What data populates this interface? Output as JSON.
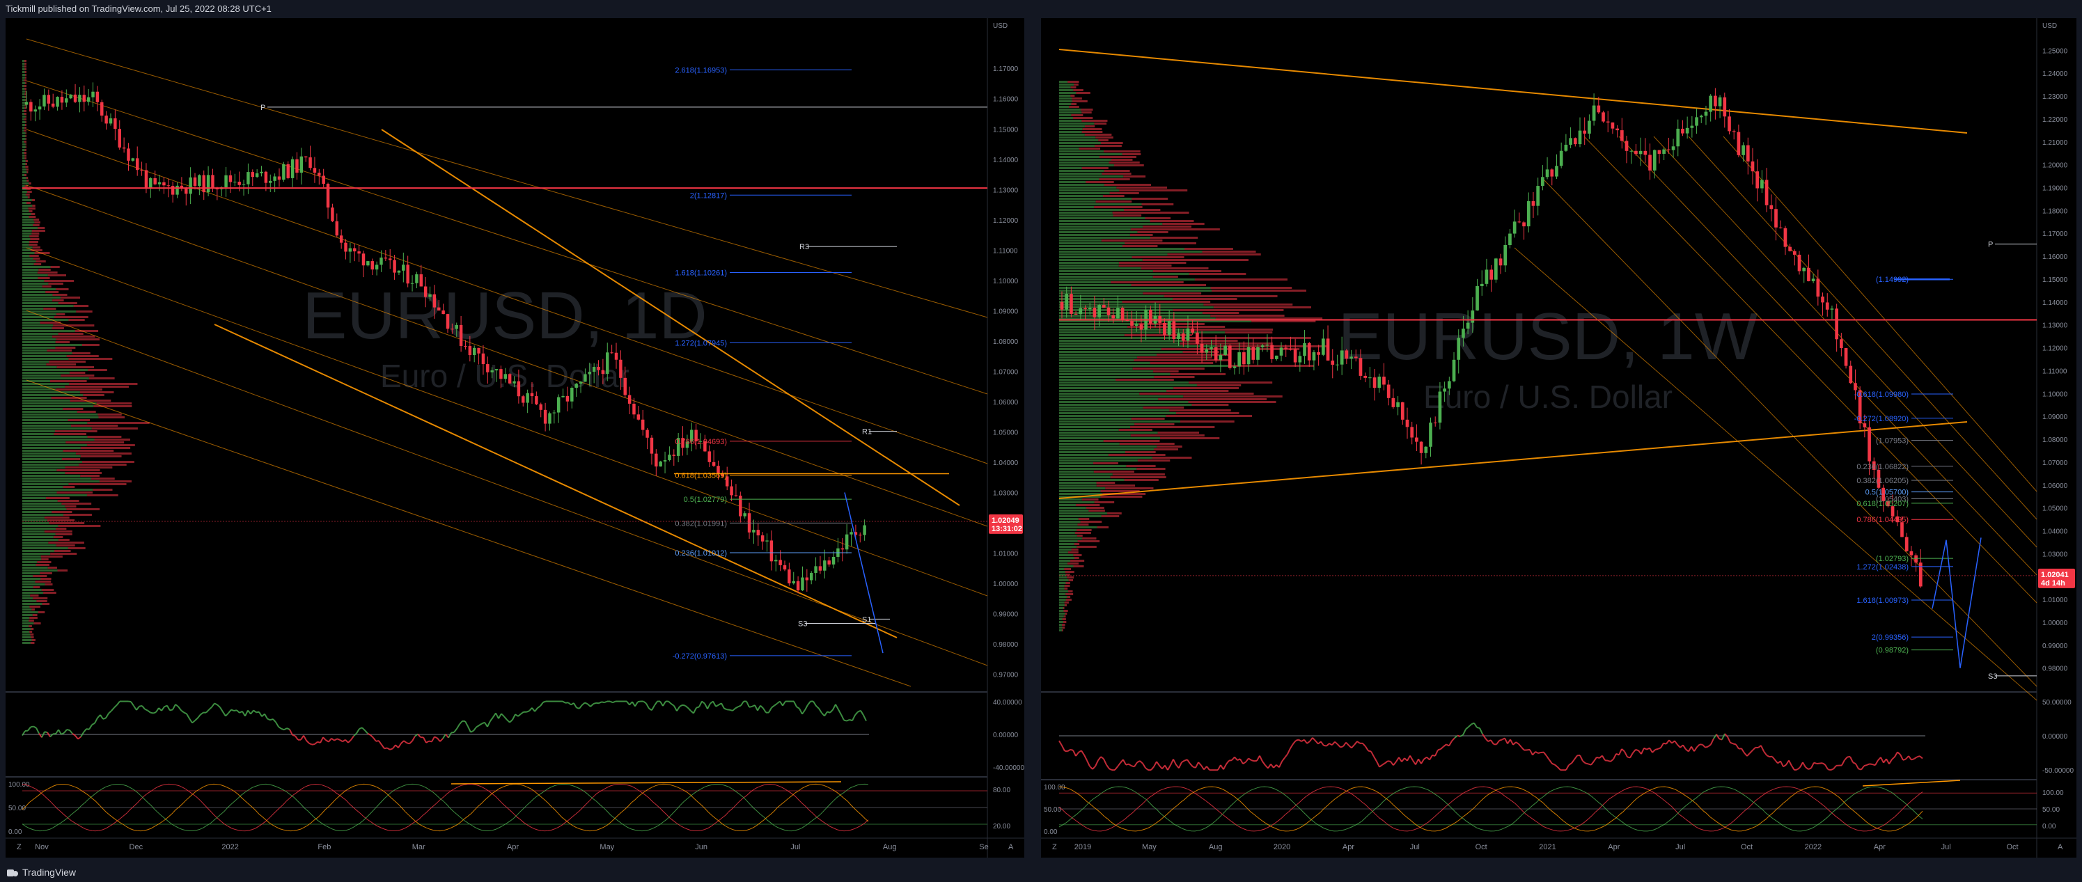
{
  "publisher_line": "Tickmill published on TradingView.com, Jul 25, 2022 08:28 UTC+1",
  "brand": "TradingView",
  "colors": {
    "bull": "#4caf50",
    "bear": "#f23645",
    "channel": "#ff9800",
    "fib_blue": "#2962ff",
    "background": "#000000"
  },
  "chart_data": [
    {
      "type": "candlestick",
      "symbol": "EURUSD, 1D",
      "subtitle": "Euro / U.S. Dollar",
      "currency": "USD",
      "x_ticks": [
        "Nov",
        "Dec",
        "2022",
        "Feb",
        "Mar",
        "Apr",
        "May",
        "Jun",
        "Jul",
        "Aug",
        "Se"
      ],
      "y_ticks": [
        "1.17000",
        "1.16000",
        "1.15000",
        "1.14000",
        "1.13000",
        "1.12000",
        "1.11000",
        "1.10000",
        "1.09000",
        "1.08000",
        "1.07000",
        "1.06000",
        "1.05000",
        "1.04000",
        "1.03000",
        "1.02000",
        "1.01000",
        "1.00000",
        "0.99000",
        "0.98000",
        "0.97000"
      ],
      "ylim": [
        0.966,
        1.182
      ],
      "last_price": "1.02049",
      "countdown": "13:31:02",
      "fib_labels": [
        {
          "text": "2.618(1.16953)",
          "price": 1.16953,
          "color": "#2962ff"
        },
        {
          "text": "2(1.12817)",
          "price": 1.12817,
          "color": "#2962ff"
        },
        {
          "text": "1.618(1.10261)",
          "price": 1.10261,
          "color": "#2962ff"
        },
        {
          "text": "1.272(1.07945)",
          "price": 1.07945,
          "color": "#2962ff"
        },
        {
          "text": "0.786(1.04693)",
          "price": 1.04693,
          "color": "#f23645"
        },
        {
          "text": "0.618(1.03569)",
          "price": 1.03569,
          "color": "#ff9800"
        },
        {
          "text": "0.5(1.02779)",
          "price": 1.02779,
          "color": "#4caf50"
        },
        {
          "text": "0.382(1.01991)",
          "price": 1.01991,
          "color": "#787b86"
        },
        {
          "text": "0.236(1.01012)",
          "price": 1.01012,
          "color": "#5b9cf6"
        },
        {
          "text": "-0.272(0.97613)",
          "price": 0.97613,
          "color": "#2962ff"
        }
      ],
      "pivot_labels": [
        "P",
        "R3",
        "R1",
        "S1",
        "S3"
      ],
      "rsi_ticks": [
        "40.00000",
        "0.00000",
        "-40.00000"
      ],
      "stoch_ticks": [
        "100.00",
        "50.00",
        "0.00"
      ],
      "stoch_right_ticks": [
        "80.00",
        "20.00"
      ]
    },
    {
      "type": "candlestick",
      "symbol": "EURUSD, 1W",
      "subtitle": "Euro / U.S. Dollar",
      "currency": "USD",
      "x_ticks": [
        "2019",
        "May",
        "Aug",
        "2020",
        "Apr",
        "Jul",
        "Oct",
        "2021",
        "Apr",
        "Jul",
        "Oct",
        "2022",
        "Apr",
        "Jul",
        "Oct"
      ],
      "y_ticks": [
        "1.25000",
        "1.24000",
        "1.23000",
        "1.22000",
        "1.21000",
        "1.20000",
        "1.19000",
        "1.18000",
        "1.17000",
        "1.16000",
        "1.15000",
        "1.14000",
        "1.13000",
        "1.12000",
        "1.11000",
        "1.10000",
        "1.09000",
        "1.08000",
        "1.07000",
        "1.06000",
        "1.05000",
        "1.04000",
        "1.03000",
        "1.02000",
        "1.01000",
        "1.00000",
        "0.99000",
        "0.98000"
      ],
      "ylim": [
        0.972,
        1.258
      ],
      "last_price": "1.02041",
      "countdown": "4d 14h",
      "fib_labels": [
        {
          "text": "(1.14992)",
          "price": 1.14992,
          "color": "#2962ff"
        },
        {
          "text": "-0.618(1.09980)",
          "price": 1.0998,
          "color": "#2962ff"
        },
        {
          "text": "-0.272(1.08920)",
          "price": 1.0892,
          "color": "#2962ff"
        },
        {
          "text": "(1.07953)",
          "price": 1.07953,
          "color": "#787b86"
        },
        {
          "text": "0.236(1.06822)",
          "price": 1.06822,
          "color": "#787b86"
        },
        {
          "text": "0.382(1.06205)",
          "price": 1.06205,
          "color": "#787b86"
        },
        {
          "text": "0.5(1.05700)",
          "price": 1.057,
          "color": "#5b9cf6"
        },
        {
          "text": "(1.05403)",
          "price": 1.05403,
          "color": "#787b86"
        },
        {
          "text": "0.618(1.05207)",
          "price": 1.05207,
          "color": "#4caf50"
        },
        {
          "text": "0.786(1.04495)",
          "price": 1.04495,
          "color": "#f23645"
        },
        {
          "text": "(1.02793)",
          "price": 1.02793,
          "color": "#4caf50"
        },
        {
          "text": "1.272(1.02438)",
          "price": 1.02438,
          "color": "#2962ff"
        },
        {
          "text": "1.618(1.00973)",
          "price": 1.00973,
          "color": "#2962ff"
        },
        {
          "text": "2(0.99356)",
          "price": 0.99356,
          "color": "#2962ff"
        },
        {
          "text": "(0.98792)",
          "price": 0.98792,
          "color": "#4caf50"
        }
      ],
      "pivot_labels": [
        "P",
        "S3"
      ],
      "rsi_ticks": [
        "50.00000",
        "0.00000",
        "-50.00000"
      ],
      "stoch_ticks": [
        "100.00",
        "50.00",
        "0.00"
      ],
      "stoch_right_ticks": [
        "100.00",
        "50.00",
        "0.00"
      ]
    }
  ],
  "footer_buttons": {
    "zoom": "Z",
    "auto": "A"
  }
}
